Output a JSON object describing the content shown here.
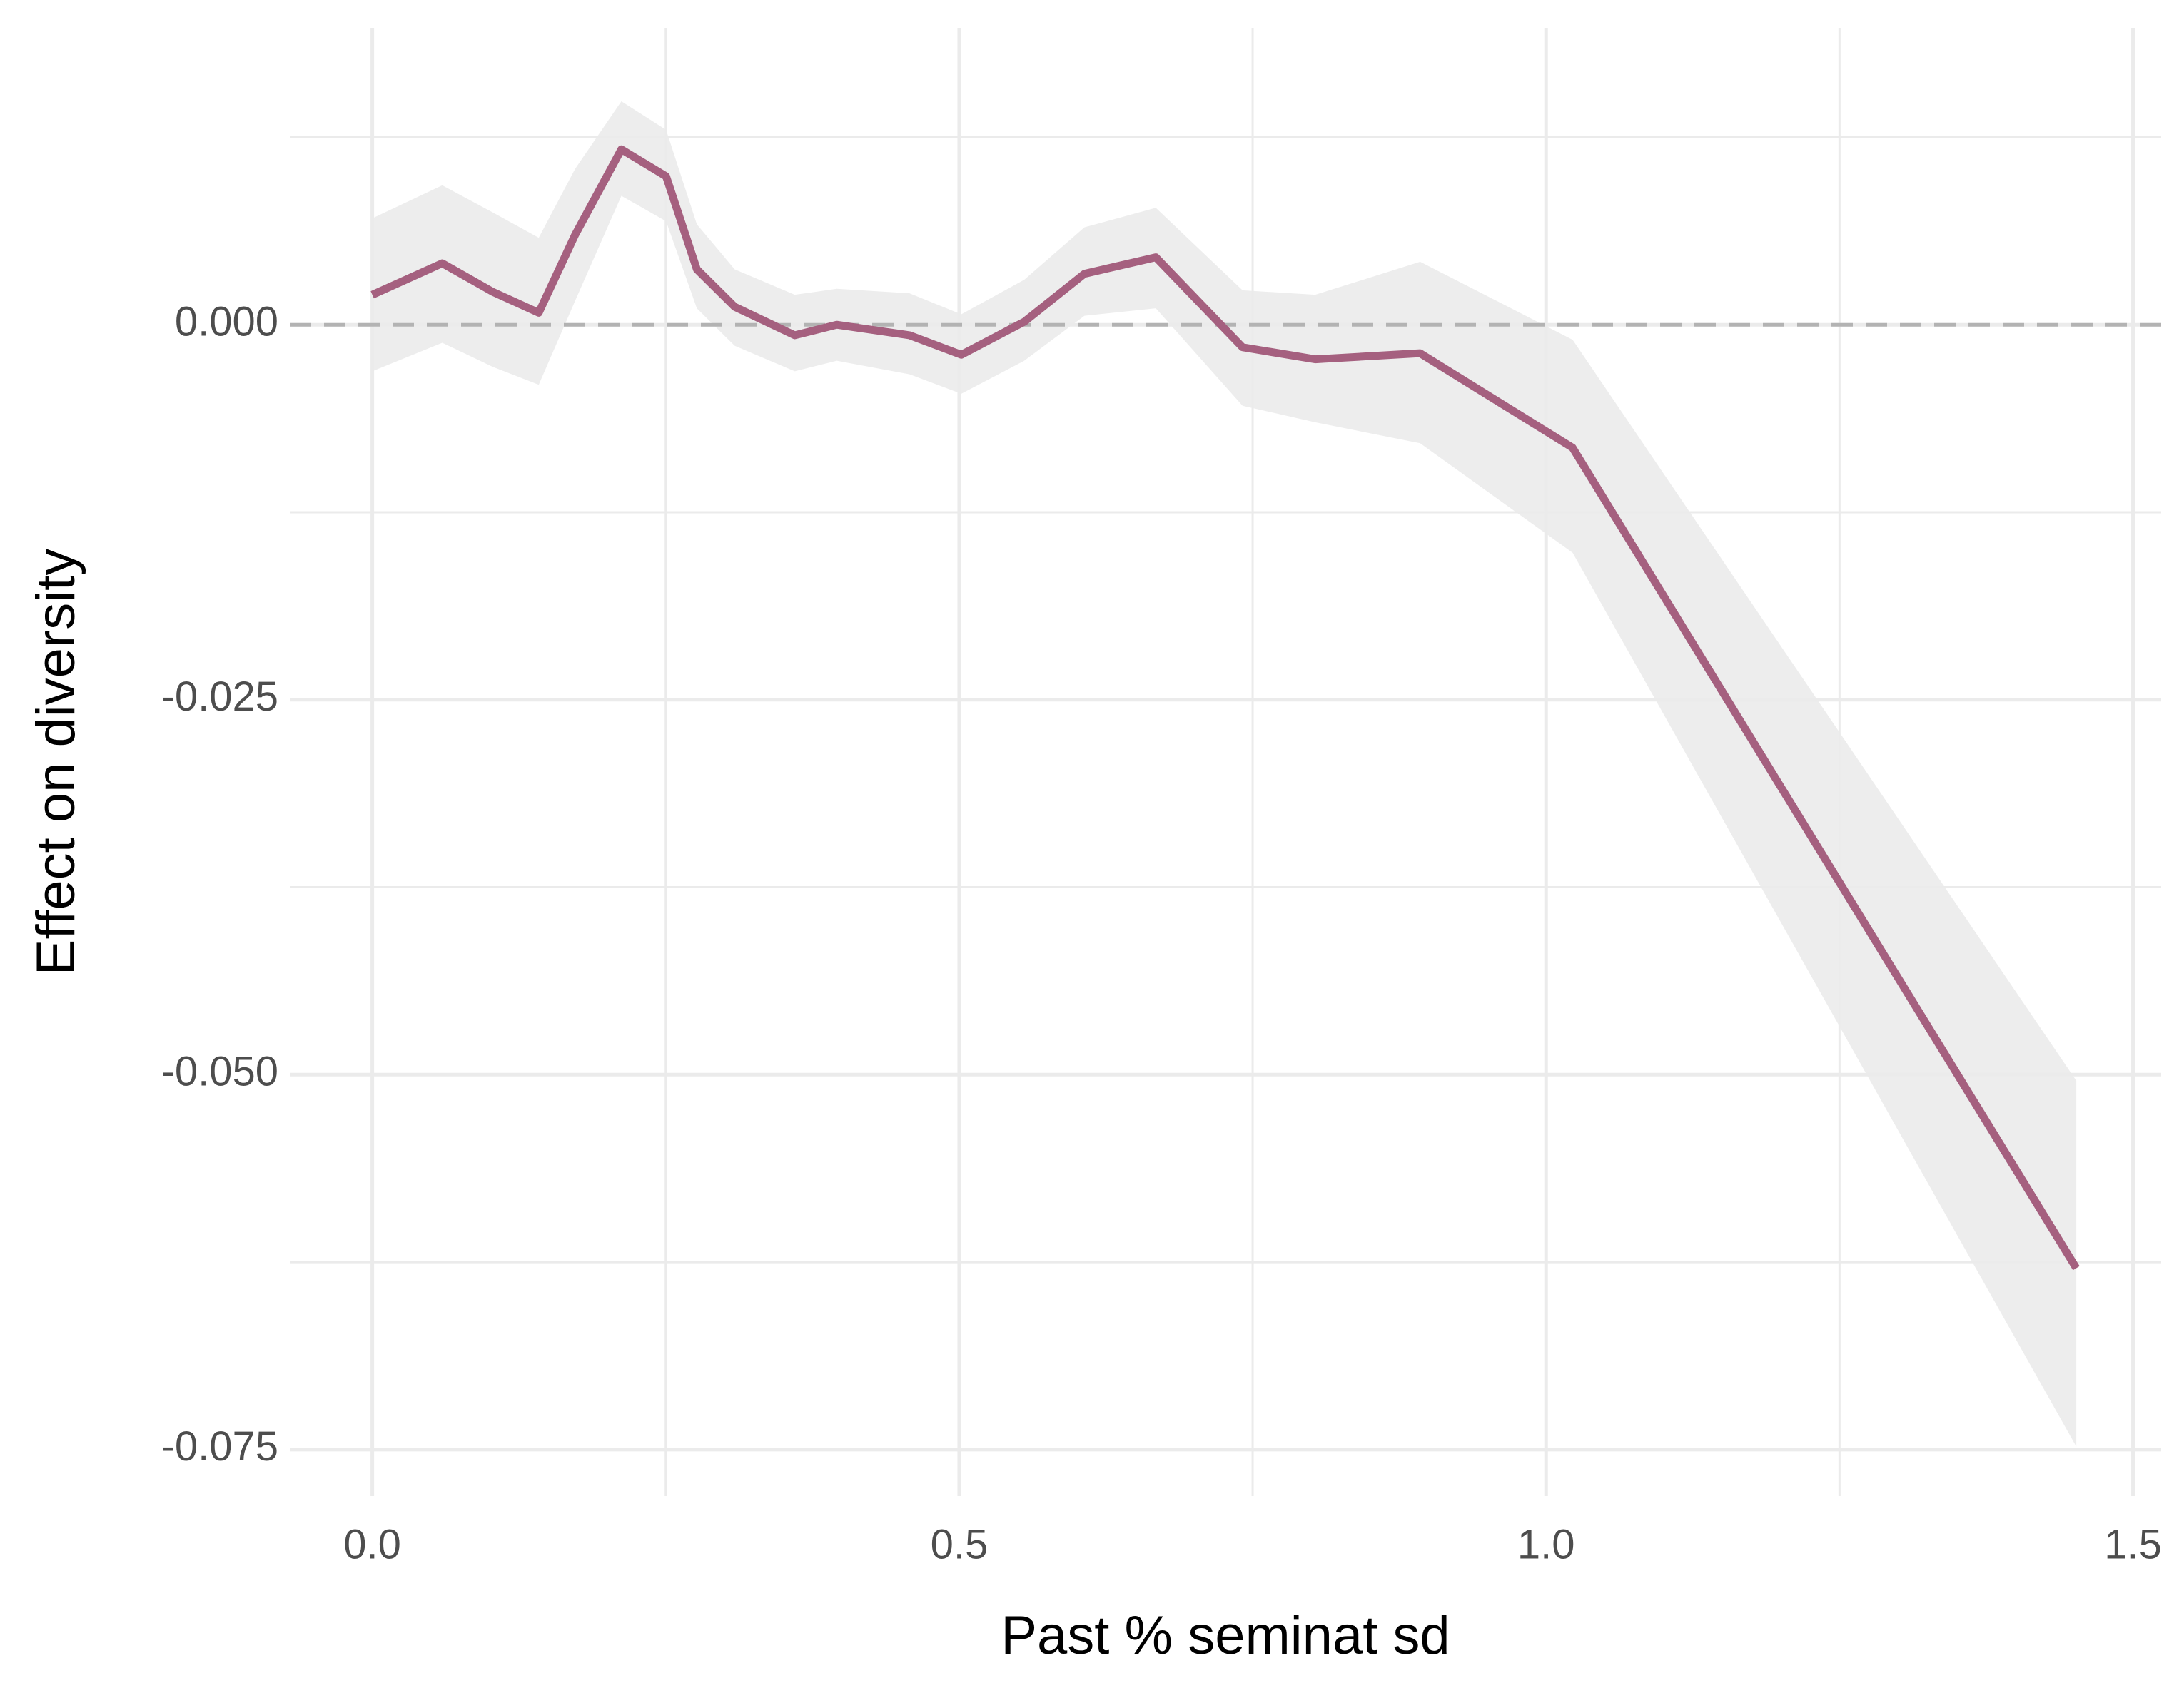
{
  "chart_data": {
    "type": "line",
    "x_label": "Past % seminat sd",
    "y_label": "Effect on diversity",
    "x": [
      0,
      0.0596,
      0.1025,
      0.1418,
      0.1728,
      0.2122,
      0.2503,
      0.2765,
      0.3087,
      0.3599,
      0.3957,
      0.4577,
      0.5018,
      0.5554,
      0.6067,
      0.6675,
      0.7414,
      0.8033,
      0.8927,
      1.0226,
      1.4517
    ],
    "values": [
      0.002,
      0.0041,
      0.0022,
      0.0008,
      0.006,
      0.0117,
      0.0099,
      0.0037,
      0.0012,
      -0.0007,
      0.0,
      -0.0007,
      -0.002,
      0.0002,
      0.0034,
      0.0045,
      -0.0015,
      -0.0023,
      -0.0019,
      -0.0082,
      -0.0629
    ],
    "lower": [
      -0.0031,
      -0.0012,
      -0.0028,
      -0.004,
      0.0016,
      0.0086,
      0.0069,
      0.0011,
      -0.0014,
      -0.0031,
      -0.0024,
      -0.0033,
      -0.0046,
      -0.0024,
      0.0006,
      0.0011,
      -0.0054,
      -0.0065,
      -0.0079,
      -0.0152,
      -0.0748
    ],
    "upper": [
      0.0071,
      0.0093,
      0.0075,
      0.0058,
      0.0104,
      0.0149,
      0.013,
      0.0067,
      0.0037,
      0.002,
      0.0024,
      0.0021,
      0.0007,
      0.003,
      0.0065,
      0.0078,
      0.0023,
      0.002,
      0.0042,
      -0.001,
      -0.0504
    ],
    "color": "#a5607f",
    "band_color": "#ebebeb",
    "hline": 0,
    "xlim": [
      -0.0703,
      1.524
    ],
    "ylim": [
      -0.0781,
      0.0198
    ],
    "xticks": [
      {
        "value": 0,
        "label": "0.0"
      },
      0.5,
      {
        "value": 1,
        "label": "1.0"
      },
      1.5
    ],
    "yticks": [
      {
        "value": 0,
        "label": "0.000"
      },
      {
        "value": -0.025,
        "label": "-0.025"
      },
      {
        "value": -0.05,
        "label": "-0.050"
      },
      {
        "value": -0.075,
        "label": "-0.075"
      }
    ],
    "x_minor_ticks": [
      0.25,
      0.75,
      1.25
    ],
    "y_minor_ticks": [
      0.0125,
      -0.0125,
      -0.0375,
      -0.0625
    ],
    "grid": true
  }
}
